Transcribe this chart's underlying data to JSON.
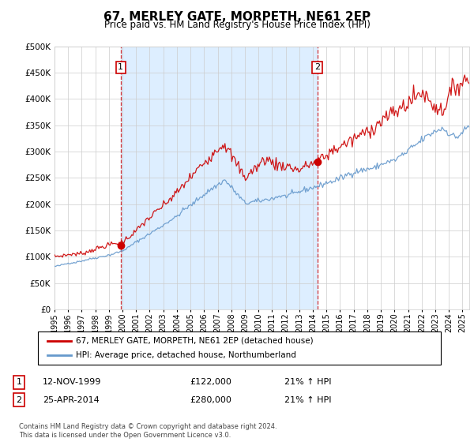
{
  "title": "67, MERLEY GATE, MORPETH, NE61 2EP",
  "subtitle": "Price paid vs. HM Land Registry's House Price Index (HPI)",
  "ylim": [
    0,
    500000
  ],
  "yticks": [
    0,
    50000,
    100000,
    150000,
    200000,
    250000,
    300000,
    350000,
    400000,
    450000,
    500000
  ],
  "legend_line1": "67, MERLEY GATE, MORPETH, NE61 2EP (detached house)",
  "legend_line2": "HPI: Average price, detached house, Northumberland",
  "annotation1_label": "1",
  "annotation1_date": "12-NOV-1999",
  "annotation1_price": "£122,000",
  "annotation1_hpi": "21% ↑ HPI",
  "annotation2_label": "2",
  "annotation2_date": "25-APR-2014",
  "annotation2_price": "£280,000",
  "annotation2_hpi": "21% ↑ HPI",
  "footer": "Contains HM Land Registry data © Crown copyright and database right 2024.\nThis data is licensed under the Open Government Licence v3.0.",
  "red_color": "#cc0000",
  "blue_color": "#6699cc",
  "bg_color": "#ffffff",
  "plot_bg_color": "#ffffff",
  "shade_color": "#ddeeff",
  "grid_color": "#cccccc",
  "purchase1_x": 1999.87,
  "purchase1_y": 122000,
  "purchase2_x": 2014.33,
  "purchase2_y": 280000,
  "xmin": 1995.0,
  "xmax": 2025.5
}
